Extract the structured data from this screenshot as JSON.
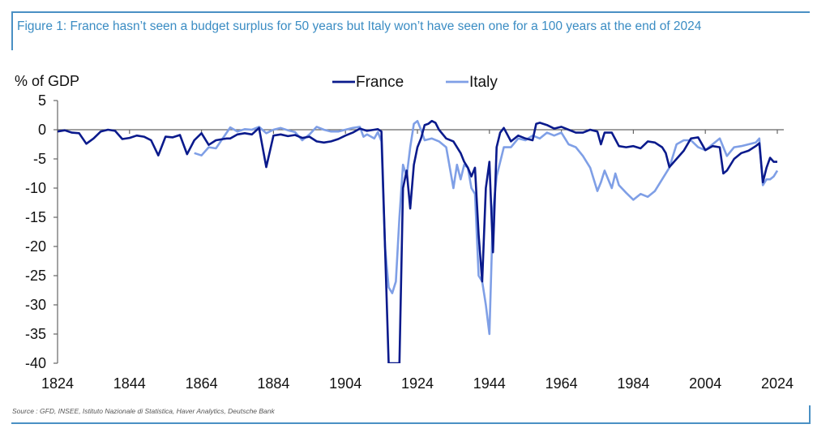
{
  "figure": {
    "title": "Figure 1: France hasn’t seen a budget surplus for 50 years but Italy won’t have seen one for a 100 years at the end of 2024",
    "source": "Source : GFD, INSEE, Istituto Nazionale di Statistica, Haver Analytics, Deutsche Bank",
    "frame_color": "#4a90c4",
    "title_color": "#3a8cc3"
  },
  "chart_data": {
    "type": "line",
    "title": "France hasn’t seen a budget surplus for 50 years but Italy won’t have seen one for a 100 years at the end of 2024",
    "xlabel": "",
    "ylabel": "% of GDP",
    "xlim": [
      1824,
      2024
    ],
    "ylim": [
      -40,
      5
    ],
    "x_ticks": [
      "1824",
      "1844",
      "1864",
      "1884",
      "1904",
      "1924",
      "1944",
      "1964",
      "1984",
      "2004",
      "2024"
    ],
    "x_tick_values": [
      1824,
      1844,
      1864,
      1884,
      1904,
      1924,
      1944,
      1964,
      1984,
      2004,
      2024
    ],
    "y_ticks": [
      "5",
      "0",
      "-5",
      "-10",
      "-15",
      "-20",
      "-25",
      "-30",
      "-35",
      "-40"
    ],
    "y_tick_values": [
      5,
      0,
      -5,
      -10,
      -15,
      -20,
      -25,
      -30,
      -35,
      -40
    ],
    "grid": false,
    "zero_line": true,
    "legend_position": "top-center",
    "series": [
      {
        "name": "France",
        "color": "#0a1a8c",
        "x": [
          1824,
          1826,
          1828,
          1830,
          1832,
          1834,
          1836,
          1838,
          1840,
          1842,
          1844,
          1846,
          1848,
          1850,
          1852,
          1854,
          1856,
          1858,
          1860,
          1862,
          1864,
          1866,
          1868,
          1870,
          1871,
          1872,
          1874,
          1876,
          1878,
          1880,
          1882,
          1884,
          1886,
          1888,
          1890,
          1892,
          1894,
          1896,
          1898,
          1900,
          1902,
          1904,
          1906,
          1908,
          1910,
          1912,
          1913,
          1914,
          1915,
          1916,
          1917,
          1918,
          1919,
          1920,
          1921,
          1922,
          1923,
          1924,
          1925,
          1926,
          1927,
          1928,
          1929,
          1930,
          1932,
          1934,
          1936,
          1937,
          1938,
          1939,
          1940,
          1941,
          1942,
          1943,
          1944,
          1945,
          1946,
          1947,
          1948,
          1950,
          1952,
          1954,
          1956,
          1957,
          1958,
          1960,
          1962,
          1964,
          1966,
          1968,
          1970,
          1972,
          1974,
          1975,
          1976,
          1978,
          1980,
          1982,
          1984,
          1986,
          1988,
          1990,
          1992,
          1993,
          1994,
          1996,
          1998,
          2000,
          2002,
          2004,
          2006,
          2008,
          2009,
          2010,
          2012,
          2014,
          2016,
          2018,
          2019,
          2020,
          2021,
          2022,
          2023,
          2024
        ],
        "values": [
          -0.3,
          -0.1,
          -0.5,
          -0.6,
          -2.4,
          -1.5,
          -0.3,
          0,
          -0.2,
          -1.6,
          -1.4,
          -1.0,
          -1.2,
          -1.8,
          -4.4,
          -1.2,
          -1.3,
          -0.9,
          -4.2,
          -1.8,
          -0.6,
          -2.6,
          -1.8,
          -1.6,
          -1.5,
          -1.5,
          -0.8,
          -0.6,
          -0.8,
          0.3,
          -6.4,
          -1.0,
          -0.8,
          -1.1,
          -0.9,
          -1.4,
          -1.2,
          -2.0,
          -2.2,
          -2.0,
          -1.6,
          -1.0,
          -0.5,
          0.2,
          -0.2,
          0,
          0.1,
          -0.3,
          -20,
          -40,
          -40,
          -40,
          -40,
          -10,
          -7,
          -13.5,
          -6,
          -3,
          -1.5,
          0.8,
          1.0,
          1.5,
          1.2,
          0,
          -1.5,
          -2.0,
          -4,
          -5.5,
          -6.5,
          -8,
          -6.5,
          -18,
          -26,
          -10,
          -5.5,
          -21,
          -3,
          -0.5,
          0.3,
          -2.0,
          -1.0,
          -1.5,
          -1.8,
          1.0,
          1.2,
          0.8,
          0.2,
          0.5,
          0.0,
          -0.5,
          -0.5,
          0,
          -0.3,
          -2.5,
          -0.5,
          -0.5,
          -2.8,
          -3.0,
          -2.8,
          -3.2,
          -2.0,
          -2.2,
          -3.0,
          -4.0,
          -6.4,
          -5.0,
          -3.6,
          -1.5,
          -1.3,
          -3.5,
          -2.8,
          -3.0,
          -7.5,
          -7.0,
          -5.0,
          -4.0,
          -3.6,
          -2.8,
          -2.3,
          -9.0,
          -6.5,
          -4.8,
          -5.5,
          -5.5
        ],
        "note": "values below -40 clipped by axis"
      },
      {
        "name": "Italy",
        "color": "#7f9fe6",
        "x": [
          1862,
          1864,
          1866,
          1868,
          1870,
          1872,
          1874,
          1876,
          1878,
          1880,
          1882,
          1884,
          1886,
          1888,
          1890,
          1892,
          1894,
          1896,
          1898,
          1900,
          1902,
          1904,
          1906,
          1908,
          1909,
          1910,
          1912,
          1913,
          1914,
          1915,
          1916,
          1917,
          1918,
          1919,
          1920,
          1921,
          1922,
          1923,
          1924,
          1925,
          1926,
          1928,
          1930,
          1932,
          1934,
          1935,
          1936,
          1937,
          1938,
          1939,
          1940,
          1941,
          1942,
          1943,
          1944,
          1945,
          1946,
          1948,
          1950,
          1952,
          1954,
          1956,
          1958,
          1960,
          1962,
          1964,
          1966,
          1968,
          1970,
          1972,
          1974,
          1975,
          1976,
          1978,
          1979,
          1980,
          1982,
          1984,
          1986,
          1988,
          1990,
          1992,
          1994,
          1996,
          1998,
          2000,
          2002,
          2004,
          2006,
          2008,
          2010,
          2012,
          2014,
          2016,
          2018,
          2019,
          2020,
          2021,
          2022,
          2023,
          2024
        ],
        "values": [
          -4.0,
          -4.4,
          -3.0,
          -3.2,
          -1.4,
          0.4,
          -0.3,
          0.1,
          0,
          0.5,
          -0.6,
          0,
          0.3,
          -0.1,
          -0.4,
          -1.8,
          -0.8,
          0.5,
          0,
          -0.3,
          -0.3,
          0,
          0.3,
          0.5,
          -1.2,
          -0.8,
          -1.5,
          -0.4,
          -2.0,
          -20,
          -27,
          -28,
          -26,
          -15,
          -6,
          -8,
          -3,
          1.0,
          1.5,
          0,
          -1.8,
          -1.5,
          -2.0,
          -3.0,
          -10,
          -6,
          -8.5,
          -6.0,
          -6.5,
          -10,
          -11,
          -25,
          -26,
          -30,
          -35,
          -14,
          -8,
          -3,
          -3,
          -1.5,
          -1.8,
          -1.0,
          -1.5,
          -0.5,
          -1.0,
          -0.5,
          -2.5,
          -3.0,
          -4.5,
          -6.5,
          -10.5,
          -9.0,
          -7.0,
          -10.0,
          -7.5,
          -9.5,
          -10.8,
          -12.0,
          -11.0,
          -11.5,
          -10.5,
          -8.5,
          -6.5,
          -2.5,
          -1.8,
          -1.8,
          -3.0,
          -3.5,
          -2.5,
          -1.5,
          -4.5,
          -3.0,
          -2.8,
          -2.5,
          -2.2,
          -1.5,
          -9.5,
          -8.5,
          -8.5,
          -8.0,
          -7.0
        ]
      }
    ]
  }
}
